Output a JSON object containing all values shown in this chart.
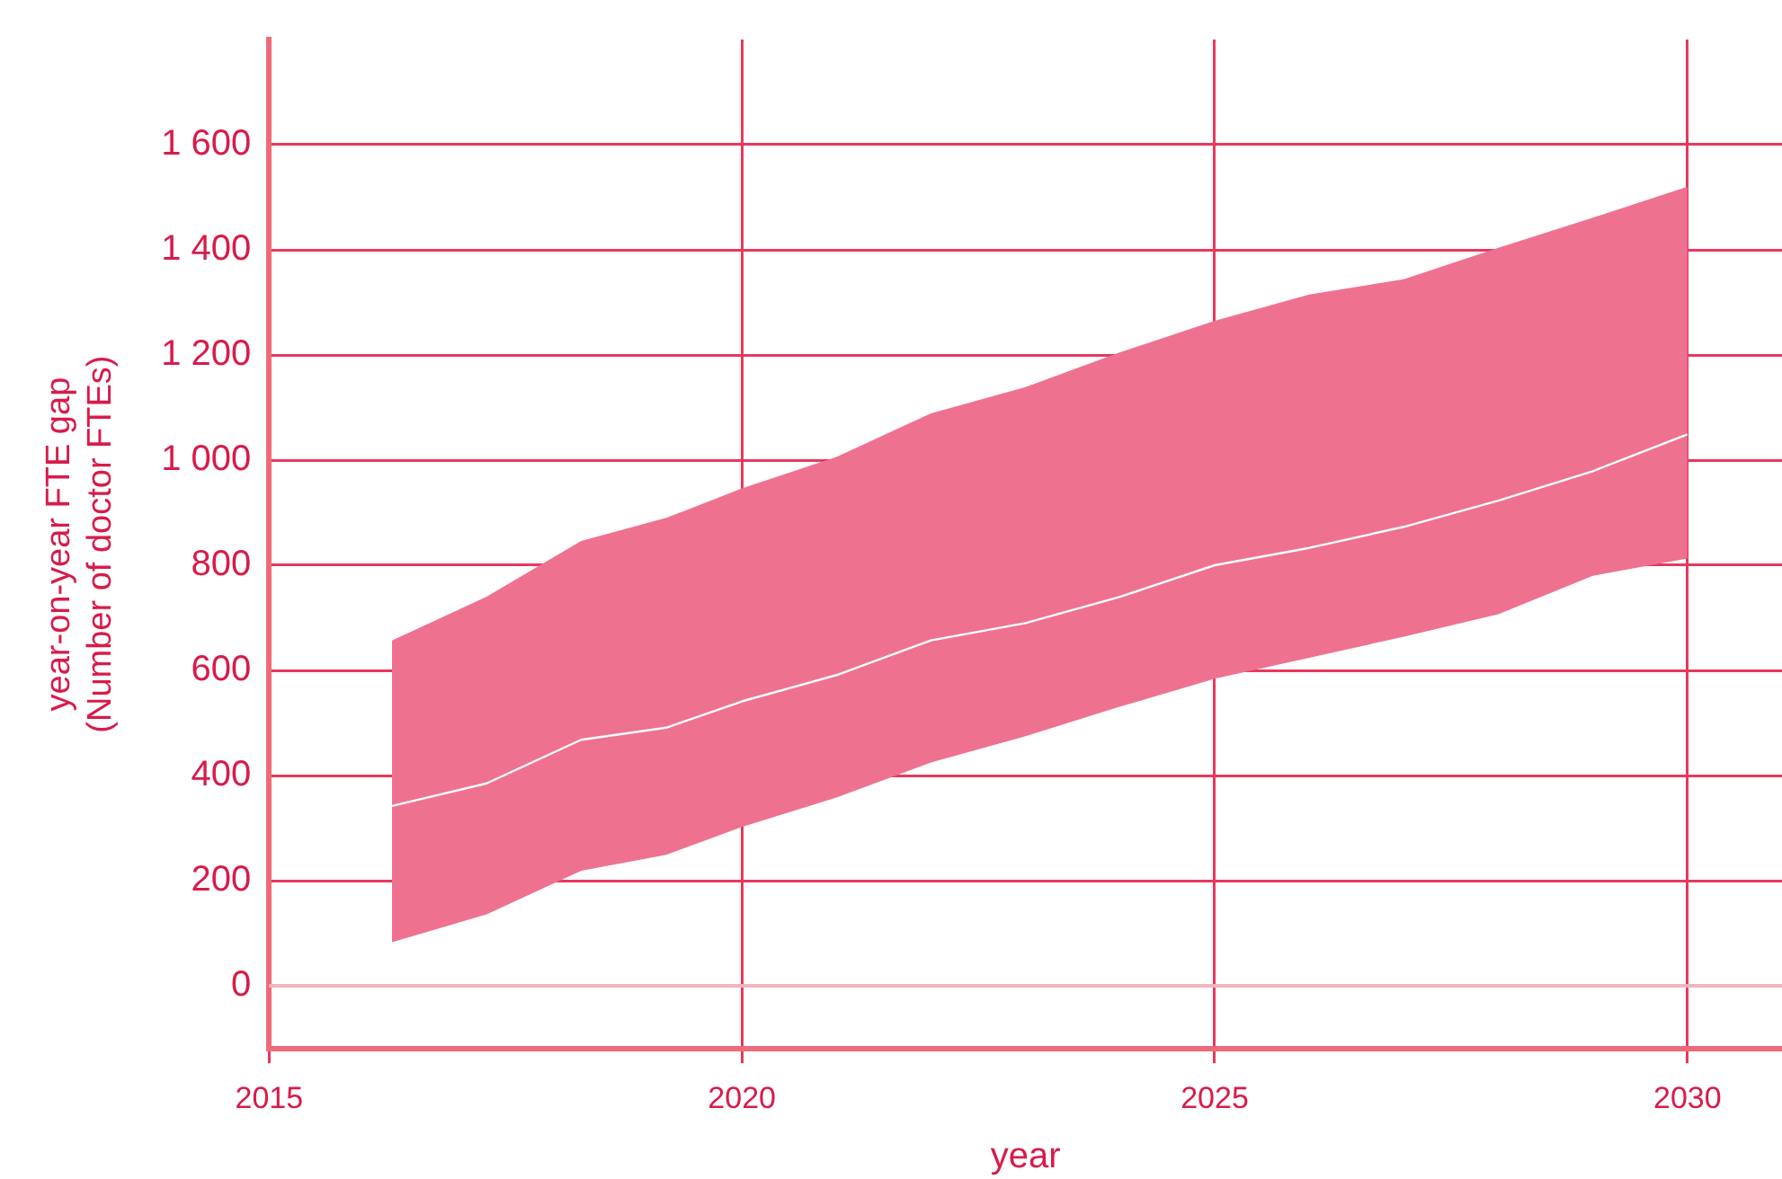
{
  "chart_data": {
    "type": "line",
    "xlabel": "year",
    "ylabel": "year-on-year FTE gap\n(Number of doctor FTEs)",
    "x": [
      2016.3,
      2017.3,
      2018.3,
      2019.2,
      2020,
      2021,
      2022,
      2023,
      2024,
      2025,
      2026,
      2027,
      2028,
      2029,
      2030
    ],
    "series": [
      {
        "color": "#ffffff",
        "values": [
          342,
          385,
          468,
          491,
          541,
          591,
          657,
          690,
          740,
          800,
          833,
          873,
          923,
          979,
          1049
        ],
        "lower": [
          83,
          136,
          219,
          249,
          302,
          358,
          425,
          475,
          531,
          584,
          624,
          664,
          707,
          780,
          813
        ],
        "upper": [
          657,
          740,
          846,
          890,
          946,
          1006,
          1089,
          1139,
          1205,
          1265,
          1315,
          1344,
          1404,
          1461,
          1520
        ]
      }
    ],
    "xlim": [
      2015,
      2031
    ],
    "xticks": [
      2015,
      2020,
      2025,
      2030
    ],
    "ylim": [
      -120,
      1800
    ],
    "yticks": [
      0,
      200,
      400,
      600,
      800,
      {
        "value": 1000,
        "label": "1 000"
      },
      {
        "value": 1200,
        "label": "1 200"
      },
      {
        "value": 1400,
        "label": "1 400"
      },
      {
        "value": 1600,
        "label": "1 600"
      }
    ],
    "ref_lines": [
      {
        "axis": "y",
        "value": 0,
        "color": "#f5b3bd"
      }
    ],
    "grid": true,
    "legend": false,
    "marker": "none",
    "line_style": "solid"
  }
}
